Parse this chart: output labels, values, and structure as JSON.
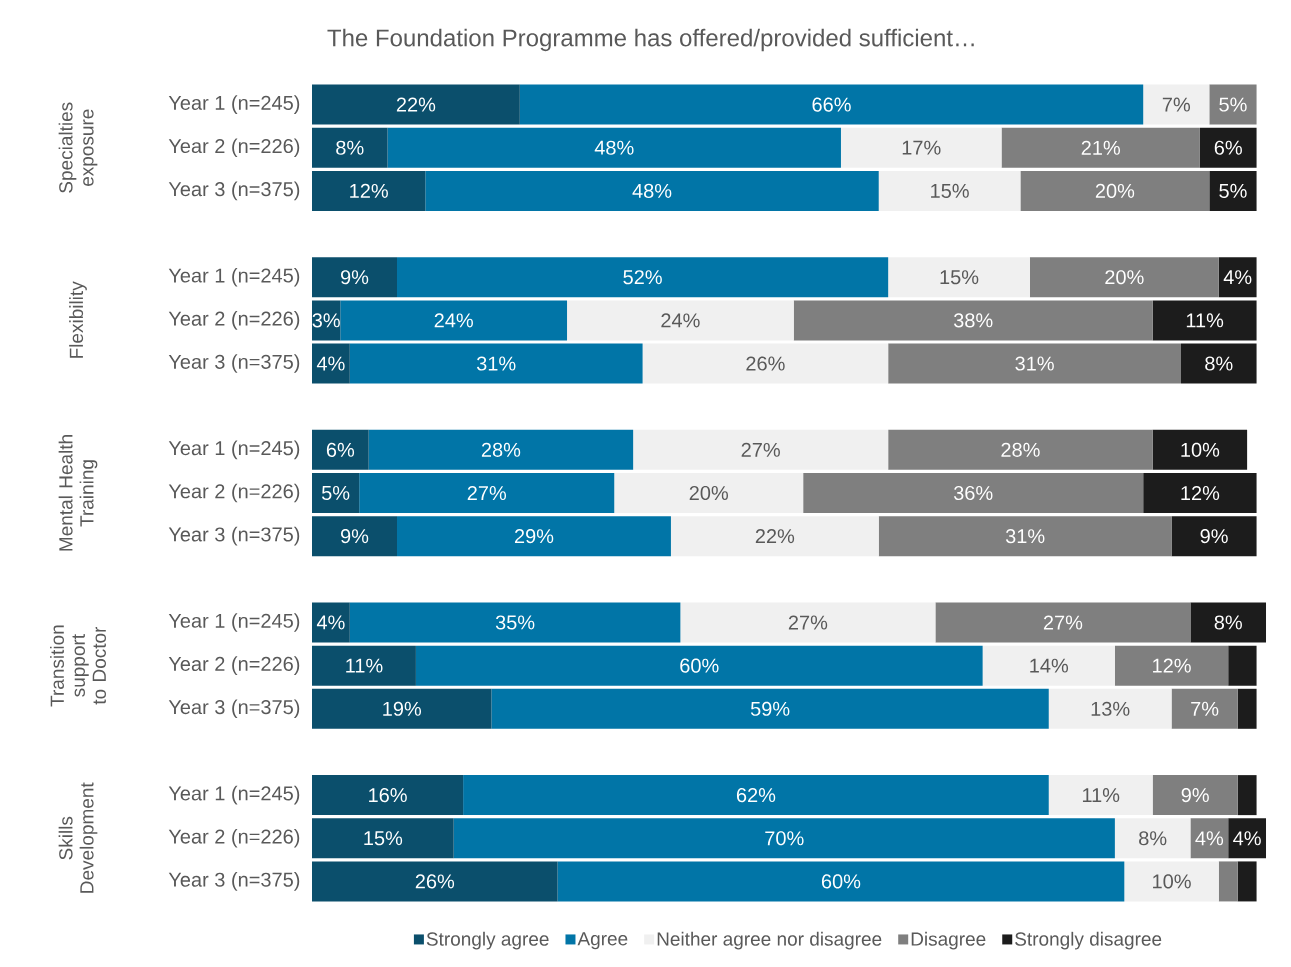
{
  "chart_data": {
    "type": "bar",
    "orientation": "horizontal",
    "stacked": true,
    "title": "The Foundation Programme has offered/provided sufficient…",
    "categories": [
      "Year 1 (n=245)",
      "Year 2 (n=226)",
      "Year 3 (n=375)",
      null,
      "Year 1 (n=245)",
      "Year 2 (n=226)",
      "Year 3 (n=375)",
      null,
      "Year 1 (n=245)",
      "Year 2 (n=226)",
      "Year 3 (n=375)",
      null,
      "Year 1 (n=245)",
      "Year 2 (n=226)",
      "Year 3 (n=375)",
      null,
      "Year 1 (n=245)",
      "Year 2 (n=226)",
      "Year 3 (n=375)"
    ],
    "annotations": [
      "Specialties exposure",
      "Flexibility",
      "Mental Health Training",
      "Transition support to Doctor",
      "Skills Development"
    ],
    "series": [
      {
        "name": "Strongly agree",
        "color": "#0b4f6c",
        "values": [
          22,
          8,
          12,
          null,
          9,
          3,
          4,
          null,
          6,
          5,
          9,
          null,
          4,
          11,
          19,
          null,
          16,
          15,
          26
        ],
        "value_labels": [
          "22%",
          "8%",
          "12%",
          null,
          "9%",
          "3%",
          "4%",
          null,
          "6%",
          "5%",
          "9%",
          null,
          "4%",
          "11%",
          "19%",
          null,
          "16%",
          "15%",
          "26%"
        ]
      },
      {
        "name": "Agree",
        "color": "#0175a7",
        "values": [
          66,
          48,
          48,
          null,
          52,
          24,
          31,
          null,
          28,
          27,
          29,
          null,
          35,
          60,
          59,
          null,
          62,
          70,
          60
        ],
        "value_labels": [
          "66%",
          "48%",
          "48%",
          null,
          "52%",
          "24%",
          "31%",
          null,
          "28%",
          "27%",
          "29%",
          null,
          "35%",
          "60%",
          "59%",
          null,
          "62%",
          "70%",
          "60%"
        ]
      },
      {
        "name": "Neither agree nor disagree",
        "color": "#f0f0f0",
        "values": [
          7,
          17,
          15,
          null,
          15,
          24,
          26,
          null,
          27,
          20,
          22,
          null,
          27,
          14,
          13,
          null,
          11,
          8,
          10
        ],
        "value_labels": [
          "7%",
          "17%",
          "15%",
          null,
          "15%",
          "24%",
          "26%",
          null,
          "27%",
          "20%",
          "22%",
          null,
          "27%",
          "14%",
          "13%",
          null,
          "11%",
          "8%",
          "10%"
        ]
      },
      {
        "name": "Disagree",
        "color": "#7f7f7f",
        "values": [
          5,
          21,
          20,
          null,
          20,
          38,
          31,
          null,
          28,
          36,
          31,
          null,
          27,
          12,
          7,
          null,
          9,
          4,
          2
        ],
        "value_labels": [
          "5%",
          "21%",
          "20%",
          null,
          "20%",
          "38%",
          "31%",
          null,
          "28%",
          "36%",
          "31%",
          null,
          "27%",
          "12%",
          "7%",
          null,
          "9%",
          "4%",
          null
        ]
      },
      {
        "name": "Strongly disagree",
        "color": "#1c1c1c",
        "values": [
          0,
          6,
          5,
          null,
          4,
          11,
          8,
          null,
          10,
          12,
          9,
          null,
          8,
          3,
          2,
          null,
          2,
          4,
          2
        ],
        "value_labels": [
          null,
          "6%",
          "5%",
          null,
          "4%",
          "11%",
          "8%",
          null,
          "10%",
          "12%",
          "9%",
          null,
          "8%",
          null,
          null,
          null,
          null,
          "4%",
          null
        ]
      }
    ],
    "legend": "bottom",
    "tick_labels": "y"
  }
}
